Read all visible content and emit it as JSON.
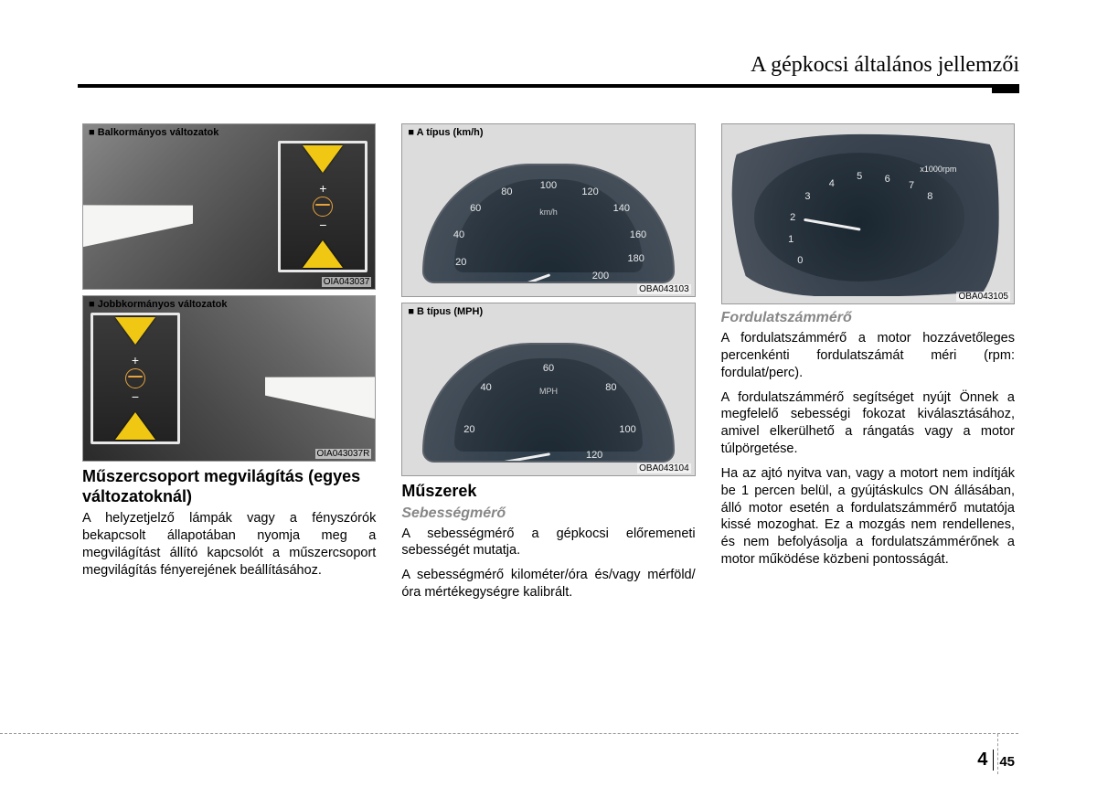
{
  "header": {
    "title": "A gépkocsi általános jellemzői"
  },
  "col1": {
    "fig_a": {
      "label": "■ Balkormányos változatok",
      "code": "OIA043037"
    },
    "fig_b": {
      "label": "■ Jobbkormányos változatok",
      "code": "OIA043037R"
    },
    "heading": "Műszercsoport megvilágítás (egyes változatoknál)",
    "body": "A helyzetjelző lámpák vagy a fényszórók bekapcsolt állapotában nyomja meg a megvilágítást állító kapcsolót a műszer­csoport megvilágítás fényerejének beál­lításához."
  },
  "col2": {
    "fig_a": {
      "label": "■ A típus (km/h)",
      "code": "OBA043103",
      "unit": "km/h",
      "ticks": [
        {
          "v": "20",
          "x": 8,
          "y": 82
        },
        {
          "v": "40",
          "x": 7,
          "y": 55
        },
        {
          "v": "60",
          "x": 15,
          "y": 30
        },
        {
          "v": "80",
          "x": 30,
          "y": 14
        },
        {
          "v": "100",
          "x": 50,
          "y": 8
        },
        {
          "v": "120",
          "x": 70,
          "y": 14
        },
        {
          "v": "140",
          "x": 85,
          "y": 30
        },
        {
          "v": "160",
          "x": 93,
          "y": 55
        },
        {
          "v": "180",
          "x": 92,
          "y": 78
        },
        {
          "v": "200",
          "x": 75,
          "y": 95
        }
      ],
      "needle_angle": -110
    },
    "fig_b": {
      "label": "■ B típus (MPH)",
      "code": "OBA043104",
      "unit": "MPH",
      "ticks": [
        {
          "v": "20",
          "x": 12,
          "y": 70
        },
        {
          "v": "40",
          "x": 20,
          "y": 30
        },
        {
          "v": "60",
          "x": 50,
          "y": 12
        },
        {
          "v": "80",
          "x": 80,
          "y": 30
        },
        {
          "v": "100",
          "x": 88,
          "y": 70
        },
        {
          "v": "120",
          "x": 72,
          "y": 95
        }
      ],
      "needle_angle": -100
    },
    "heading": "Műszerek",
    "subheading": "Sebességmérő",
    "body1": "A sebességmérő a gépkocsi előremeneti sebességét mutatja.",
    "body2": "A sebességmérő kilométer/óra és/vagy mérföld/óra mértékegységre kalibrált."
  },
  "col3": {
    "fig": {
      "code": "OBA043105",
      "unit": "x1000rpm",
      "ticks": [
        {
          "v": "0",
          "x": 18,
          "y": 88
        },
        {
          "v": "1",
          "x": 13,
          "y": 70
        },
        {
          "v": "2",
          "x": 14,
          "y": 50
        },
        {
          "v": "3",
          "x": 22,
          "y": 32
        },
        {
          "v": "4",
          "x": 35,
          "y": 20
        },
        {
          "v": "5",
          "x": 50,
          "y": 14
        },
        {
          "v": "6",
          "x": 65,
          "y": 16
        },
        {
          "v": "7",
          "x": 78,
          "y": 22
        },
        {
          "v": "8",
          "x": 88,
          "y": 32
        }
      ],
      "needle_angle": -80
    },
    "subheading": "Fordulatszámmérő",
    "body1": "A fordulatszámmérő a motor hozzáve­tőleges percenkénti fordulatszámát méri (rpm: fordulat/perc).",
    "body2": "A fordulatszámmérő segítséget nyújt Önnek a megfelelő sebességi fokozat kiválasztásához, amivel elkerülhető a rángatás vagy a motor túlpörgetése.",
    "body3": "Ha az ajtó nyitva van, vagy a motort nem indítják be 1 percen belül, a gyúj­táskulcs ON állásában, álló motor ese­tén a fordulatszámmérő mutatója kissé mozoghat. Ez a mozgás nem rendelle­nes, és nem befolyásolja a fordulat­számmérőnek a motor működése köz­beni pontosságát."
  },
  "footer": {
    "chapter": "4",
    "page": "45"
  }
}
